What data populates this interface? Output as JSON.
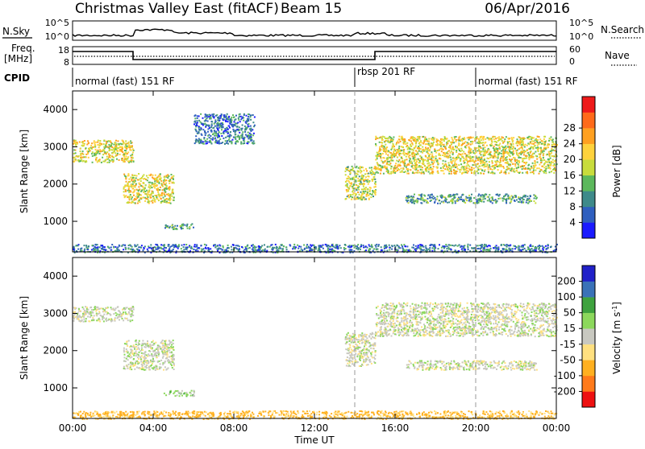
{
  "header": {
    "station": "Christmas Valley East (fitACF)",
    "beam": "Beam 15",
    "date": "06/Apr/2016"
  },
  "noise_panel": {
    "left_label": "N.Sky",
    "right_label": "N.Search",
    "left_ticks": [
      "10^5",
      "10^0"
    ],
    "right_ticks": [
      "10^5",
      "10^0"
    ]
  },
  "freq_panel": {
    "left_label_1": "Freq.",
    "left_label_2": "[MHz]",
    "right_label": "Nave",
    "left_ticks": [
      "18",
      "8"
    ],
    "right_ticks": [
      "60",
      "0"
    ]
  },
  "cpid": {
    "label": "CPID",
    "segments": [
      {
        "text": "normal (fast) 151 RF",
        "start_h": 0,
        "end_h": 14
      },
      {
        "text": "rbsp 201 RF",
        "start_h": 14,
        "end_h": 20
      },
      {
        "text": "normal (fast) 151 RF",
        "start_h": 20,
        "end_h": 24
      }
    ]
  },
  "axes": {
    "xlabel": "Time UT",
    "x_ticks": [
      "00:00",
      "04:00",
      "08:00",
      "12:00",
      "16:00",
      "20:00",
      "00:00"
    ],
    "ylabel_power": "Slant Range [km]",
    "ylabel_velocity": "Slant Range [km]",
    "y_ticks": [
      "1000",
      "2000",
      "3000",
      "4000"
    ]
  },
  "power_colorbar": {
    "label": "Power [dB]",
    "ticks": [
      "4",
      "8",
      "12",
      "16",
      "20",
      "24",
      "28"
    ],
    "colors": [
      "#1a1aff",
      "#2f5fbf",
      "#3e8a8a",
      "#5cb85c",
      "#c8dc3c",
      "#ffd23c",
      "#ffa020",
      "#ff6a1a",
      "#ee1a1a"
    ]
  },
  "velocity_colorbar": {
    "label": "Velocity [m s",
    "label_sup": "-1",
    "label_end": "]",
    "ticks": [
      "-200",
      "-100",
      "-50",
      "-15",
      "15",
      "50",
      "100",
      "200"
    ],
    "colors": [
      "#ee1111",
      "#ff7a1a",
      "#ffb020",
      "#ffe080",
      "#c8c8c0",
      "#8cd85c",
      "#3ea23e",
      "#3a72b8",
      "#2020c8"
    ]
  },
  "chart_data": {
    "type": "heatmap",
    "x_range_h": [
      0,
      24
    ],
    "y_range_km": [
      180,
      4500
    ],
    "dashed_times_h": [
      14,
      20
    ],
    "power_clusters": [
      {
        "t": [
          0,
          3
        ],
        "r": [
          2600,
          3200
        ],
        "db": 20
      },
      {
        "t": [
          2.5,
          5
        ],
        "r": [
          1500,
          2300
        ],
        "db": 20
      },
      {
        "t": [
          4.5,
          6
        ],
        "r": [
          800,
          950
        ],
        "db": 12
      },
      {
        "t": [
          6,
          9
        ],
        "r": [
          3100,
          3900
        ],
        "db": 8
      },
      {
        "t": [
          13.5,
          15
        ],
        "r": [
          1600,
          2500
        ],
        "db": 18
      },
      {
        "t": [
          15,
          24
        ],
        "r": [
          2300,
          3300
        ],
        "db": 20
      },
      {
        "t": [
          16.5,
          23
        ],
        "r": [
          1500,
          1750
        ],
        "db": 12
      },
      {
        "t": [
          0,
          24
        ],
        "r": [
          180,
          400
        ],
        "db": 8
      }
    ],
    "velocity_clusters": [
      {
        "t": [
          0,
          3
        ],
        "r": [
          2800,
          3200
        ],
        "v": 0
      },
      {
        "t": [
          2.5,
          5
        ],
        "r": [
          1500,
          2300
        ],
        "v": 0
      },
      {
        "t": [
          4.5,
          6
        ],
        "r": [
          800,
          950
        ],
        "v": 30
      },
      {
        "t": [
          13.5,
          15
        ],
        "r": [
          1600,
          2500
        ],
        "v": 0
      },
      {
        "t": [
          15,
          24
        ],
        "r": [
          2400,
          3300
        ],
        "v": 0
      },
      {
        "t": [
          16.5,
          23
        ],
        "r": [
          1500,
          1750
        ],
        "v": 0
      },
      {
        "t": [
          0,
          24
        ],
        "r": [
          180,
          400
        ],
        "v": -60
      }
    ]
  }
}
